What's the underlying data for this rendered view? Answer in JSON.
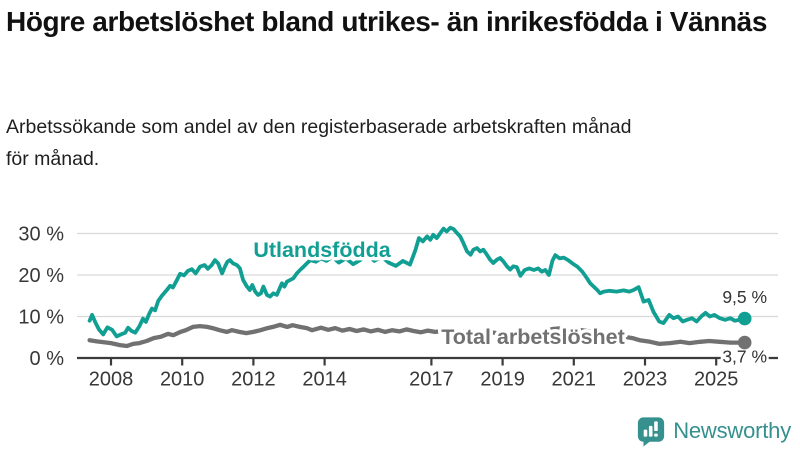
{
  "title": "Högre arbetslöshet bland utrikes- än inrikesfödda i Vännäs",
  "subtitle": "Arbetssökande som andel av den registerbaserade arbetskraften månad för månad.",
  "branding": {
    "name": "Newsworthy",
    "icon": "bar-chart-speech-bubble-icon",
    "color": "#35908e"
  },
  "colors": {
    "foreign_born": "#119e93",
    "total": "#717171",
    "axis_text": "#383838",
    "value_label_text": "#333333",
    "gridline": "#d9d9d9",
    "axis_line": "#3b3b3b",
    "background": "#ffffff"
  },
  "chart_data": {
    "type": "line",
    "title": "Högre arbetslöshet bland utrikes- än inrikesfödda i Vännäs",
    "unit": "%",
    "x_axis": {
      "tick_values": [
        2008,
        2010,
        2012,
        2014,
        2017,
        2019,
        2021,
        2023,
        2025
      ],
      "tick_labels": [
        "2008",
        "2010",
        "2012",
        "2014",
        "2017",
        "2019",
        "2021",
        "2023",
        "2025"
      ],
      "range": [
        2007.3,
        2026.3
      ]
    },
    "y_axis": {
      "tick_values": [
        0,
        10,
        20,
        30
      ],
      "tick_labels": [
        "0 %",
        "10 %",
        "20 %",
        "30 %"
      ],
      "range": [
        0,
        33
      ],
      "grid": true
    },
    "series": [
      {
        "name": "Utlandsfödda",
        "color": "#119e93",
        "end_label": "9,5 %",
        "end_value": 9.5,
        "points": [
          [
            2007.4,
            9.0
          ],
          [
            2007.47,
            10.4
          ],
          [
            2007.56,
            8.6
          ],
          [
            2007.66,
            6.9
          ],
          [
            2007.78,
            5.7
          ],
          [
            2007.9,
            7.4
          ],
          [
            2008.03,
            6.8
          ],
          [
            2008.16,
            5.2
          ],
          [
            2008.28,
            5.7
          ],
          [
            2008.4,
            6.1
          ],
          [
            2008.48,
            7.3
          ],
          [
            2008.58,
            6.5
          ],
          [
            2008.68,
            6.1
          ],
          [
            2008.8,
            7.7
          ],
          [
            2008.9,
            9.5
          ],
          [
            2008.98,
            8.7
          ],
          [
            2009.07,
            10.6
          ],
          [
            2009.15,
            11.9
          ],
          [
            2009.24,
            11.5
          ],
          [
            2009.33,
            13.8
          ],
          [
            2009.43,
            15.0
          ],
          [
            2009.55,
            16.2
          ],
          [
            2009.66,
            17.4
          ],
          [
            2009.74,
            17.0
          ],
          [
            2009.84,
            18.6
          ],
          [
            2009.94,
            20.3
          ],
          [
            2010.05,
            19.9
          ],
          [
            2010.16,
            21.0
          ],
          [
            2010.27,
            21.4
          ],
          [
            2010.38,
            20.4
          ],
          [
            2010.5,
            22.0
          ],
          [
            2010.63,
            22.4
          ],
          [
            2010.72,
            21.5
          ],
          [
            2010.83,
            22.4
          ],
          [
            2010.92,
            23.6
          ],
          [
            2011.01,
            22.8
          ],
          [
            2011.12,
            20.4
          ],
          [
            2011.2,
            22.0
          ],
          [
            2011.27,
            23.2
          ],
          [
            2011.34,
            23.6
          ],
          [
            2011.43,
            22.8
          ],
          [
            2011.54,
            22.4
          ],
          [
            2011.62,
            21.6
          ],
          [
            2011.71,
            18.8
          ],
          [
            2011.82,
            17.2
          ],
          [
            2011.9,
            16.4
          ],
          [
            2011.97,
            17.6
          ],
          [
            2012.05,
            16.0
          ],
          [
            2012.13,
            15.2
          ],
          [
            2012.21,
            15.6
          ],
          [
            2012.28,
            17.2
          ],
          [
            2012.38,
            15.2
          ],
          [
            2012.47,
            14.8
          ],
          [
            2012.56,
            15.6
          ],
          [
            2012.66,
            15.2
          ],
          [
            2012.74,
            16.8
          ],
          [
            2012.8,
            18.0
          ],
          [
            2012.87,
            17.2
          ],
          [
            2012.94,
            18.4
          ],
          [
            2013.03,
            18.8
          ],
          [
            2013.12,
            19.2
          ],
          [
            2013.22,
            20.4
          ],
          [
            2013.31,
            21.2
          ],
          [
            2013.41,
            22.0
          ],
          [
            2013.5,
            22.8
          ],
          [
            2013.6,
            23.6
          ],
          [
            2013.75,
            23.2
          ],
          [
            2013.9,
            24.0
          ],
          [
            2014.05,
            23.4
          ],
          [
            2014.22,
            24.4
          ],
          [
            2014.4,
            23.0
          ],
          [
            2014.6,
            24.0
          ],
          [
            2014.8,
            22.6
          ],
          [
            2015.0,
            23.6
          ],
          [
            2015.2,
            24.8
          ],
          [
            2015.4,
            23.4
          ],
          [
            2015.6,
            24.4
          ],
          [
            2015.8,
            23.0
          ],
          [
            2016.0,
            22.2
          ],
          [
            2016.2,
            23.4
          ],
          [
            2016.4,
            22.5
          ],
          [
            2016.55,
            26.0
          ],
          [
            2016.65,
            28.9
          ],
          [
            2016.76,
            28.1
          ],
          [
            2016.88,
            29.3
          ],
          [
            2016.97,
            28.5
          ],
          [
            2017.05,
            29.7
          ],
          [
            2017.15,
            28.9
          ],
          [
            2017.25,
            30.1
          ],
          [
            2017.34,
            31.2
          ],
          [
            2017.43,
            30.5
          ],
          [
            2017.53,
            31.4
          ],
          [
            2017.62,
            31.1
          ],
          [
            2017.72,
            30.1
          ],
          [
            2017.81,
            29.3
          ],
          [
            2017.9,
            27.7
          ],
          [
            2018.0,
            25.7
          ],
          [
            2018.1,
            24.9
          ],
          [
            2018.18,
            26.1
          ],
          [
            2018.28,
            26.5
          ],
          [
            2018.37,
            25.7
          ],
          [
            2018.46,
            26.1
          ],
          [
            2018.56,
            24.9
          ],
          [
            2018.65,
            23.7
          ],
          [
            2018.74,
            22.9
          ],
          [
            2018.84,
            23.7
          ],
          [
            2018.93,
            24.1
          ],
          [
            2019.02,
            23.3
          ],
          [
            2019.12,
            22.1
          ],
          [
            2019.21,
            21.3
          ],
          [
            2019.3,
            22.1
          ],
          [
            2019.4,
            21.9
          ],
          [
            2019.5,
            19.8
          ],
          [
            2019.62,
            21.2
          ],
          [
            2019.75,
            21.6
          ],
          [
            2019.88,
            21.2
          ],
          [
            2020.0,
            21.6
          ],
          [
            2020.1,
            20.8
          ],
          [
            2020.2,
            21.2
          ],
          [
            2020.3,
            20.0
          ],
          [
            2020.4,
            23.4
          ],
          [
            2020.48,
            24.8
          ],
          [
            2020.6,
            24.0
          ],
          [
            2020.72,
            24.2
          ],
          [
            2020.84,
            23.6
          ],
          [
            2020.96,
            22.8
          ],
          [
            2021.1,
            22.0
          ],
          [
            2021.24,
            20.8
          ],
          [
            2021.37,
            19.2
          ],
          [
            2021.46,
            18.0
          ],
          [
            2021.56,
            17.2
          ],
          [
            2021.66,
            16.4
          ],
          [
            2021.74,
            15.6
          ],
          [
            2021.84,
            16.0
          ],
          [
            2022.0,
            16.2
          ],
          [
            2022.2,
            16.0
          ],
          [
            2022.4,
            16.3
          ],
          [
            2022.56,
            16.0
          ],
          [
            2022.68,
            16.4
          ],
          [
            2022.82,
            17.1
          ],
          [
            2022.96,
            13.6
          ],
          [
            2023.1,
            14.0
          ],
          [
            2023.24,
            11.1
          ],
          [
            2023.4,
            8.8
          ],
          [
            2023.52,
            8.4
          ],
          [
            2023.68,
            10.4
          ],
          [
            2023.8,
            9.6
          ],
          [
            2023.93,
            10.0
          ],
          [
            2024.06,
            8.8
          ],
          [
            2024.18,
            9.2
          ],
          [
            2024.32,
            9.6
          ],
          [
            2024.45,
            8.8
          ],
          [
            2024.58,
            10.0
          ],
          [
            2024.7,
            10.9
          ],
          [
            2024.82,
            10.0
          ],
          [
            2024.95,
            10.4
          ],
          [
            2025.1,
            9.6
          ],
          [
            2025.25,
            9.2
          ],
          [
            2025.4,
            9.6
          ],
          [
            2025.52,
            9.0
          ],
          [
            2025.66,
            9.2
          ],
          [
            2025.8,
            9.5
          ]
        ]
      },
      {
        "name": "Total arbetslöshet",
        "color": "#717171",
        "end_label": "3,7 %",
        "end_value": 3.7,
        "points": [
          [
            2007.4,
            4.3
          ],
          [
            2007.6,
            4.0
          ],
          [
            2007.8,
            3.8
          ],
          [
            2008.0,
            3.6
          ],
          [
            2008.25,
            3.1
          ],
          [
            2008.45,
            2.9
          ],
          [
            2008.62,
            3.4
          ],
          [
            2008.8,
            3.6
          ],
          [
            2009.0,
            4.1
          ],
          [
            2009.2,
            4.8
          ],
          [
            2009.4,
            5.1
          ],
          [
            2009.6,
            5.8
          ],
          [
            2009.75,
            5.5
          ],
          [
            2009.95,
            6.3
          ],
          [
            2010.1,
            6.7
          ],
          [
            2010.3,
            7.5
          ],
          [
            2010.5,
            7.7
          ],
          [
            2010.7,
            7.5
          ],
          [
            2010.85,
            7.2
          ],
          [
            2011.05,
            6.7
          ],
          [
            2011.25,
            6.3
          ],
          [
            2011.4,
            6.7
          ],
          [
            2011.6,
            6.3
          ],
          [
            2011.8,
            6.0
          ],
          [
            2012.0,
            6.3
          ],
          [
            2012.2,
            6.7
          ],
          [
            2012.4,
            7.2
          ],
          [
            2012.55,
            7.5
          ],
          [
            2012.75,
            8.0
          ],
          [
            2012.95,
            7.5
          ],
          [
            2013.1,
            7.9
          ],
          [
            2013.3,
            7.5
          ],
          [
            2013.5,
            7.2
          ],
          [
            2013.65,
            6.7
          ],
          [
            2013.9,
            7.3
          ],
          [
            2014.1,
            6.8
          ],
          [
            2014.3,
            7.2
          ],
          [
            2014.5,
            6.6
          ],
          [
            2014.7,
            7.0
          ],
          [
            2014.9,
            6.5
          ],
          [
            2015.1,
            6.9
          ],
          [
            2015.3,
            6.4
          ],
          [
            2015.5,
            6.8
          ],
          [
            2015.7,
            6.3
          ],
          [
            2015.9,
            6.7
          ],
          [
            2016.1,
            6.4
          ],
          [
            2016.3,
            6.9
          ],
          [
            2016.5,
            6.5
          ],
          [
            2016.7,
            6.2
          ],
          [
            2016.9,
            6.6
          ],
          [
            2017.1,
            6.3
          ],
          [
            2017.4,
            6.5
          ],
          [
            2017.7,
            6.2
          ],
          [
            2018.0,
            6.4
          ],
          [
            2018.3,
            6.0
          ],
          [
            2018.6,
            6.3
          ],
          [
            2018.9,
            5.9
          ],
          [
            2019.2,
            6.1
          ],
          [
            2019.5,
            5.8
          ],
          [
            2019.8,
            6.0
          ],
          [
            2020.1,
            6.2
          ],
          [
            2020.4,
            7.0
          ],
          [
            2020.7,
            7.2
          ],
          [
            2021.0,
            7.0
          ],
          [
            2021.3,
            6.6
          ],
          [
            2021.6,
            6.2
          ],
          [
            2021.9,
            5.8
          ],
          [
            2022.2,
            5.4
          ],
          [
            2022.5,
            5.0
          ],
          [
            2022.65,
            4.8
          ],
          [
            2022.85,
            4.3
          ],
          [
            2023.15,
            3.9
          ],
          [
            2023.4,
            3.4
          ],
          [
            2023.7,
            3.6
          ],
          [
            2024.0,
            3.9
          ],
          [
            2024.25,
            3.6
          ],
          [
            2024.55,
            3.9
          ],
          [
            2024.8,
            4.1
          ],
          [
            2025.1,
            3.9
          ],
          [
            2025.4,
            3.7
          ],
          [
            2025.8,
            3.7
          ]
        ]
      }
    ],
    "legend_position": "inline-labels"
  }
}
